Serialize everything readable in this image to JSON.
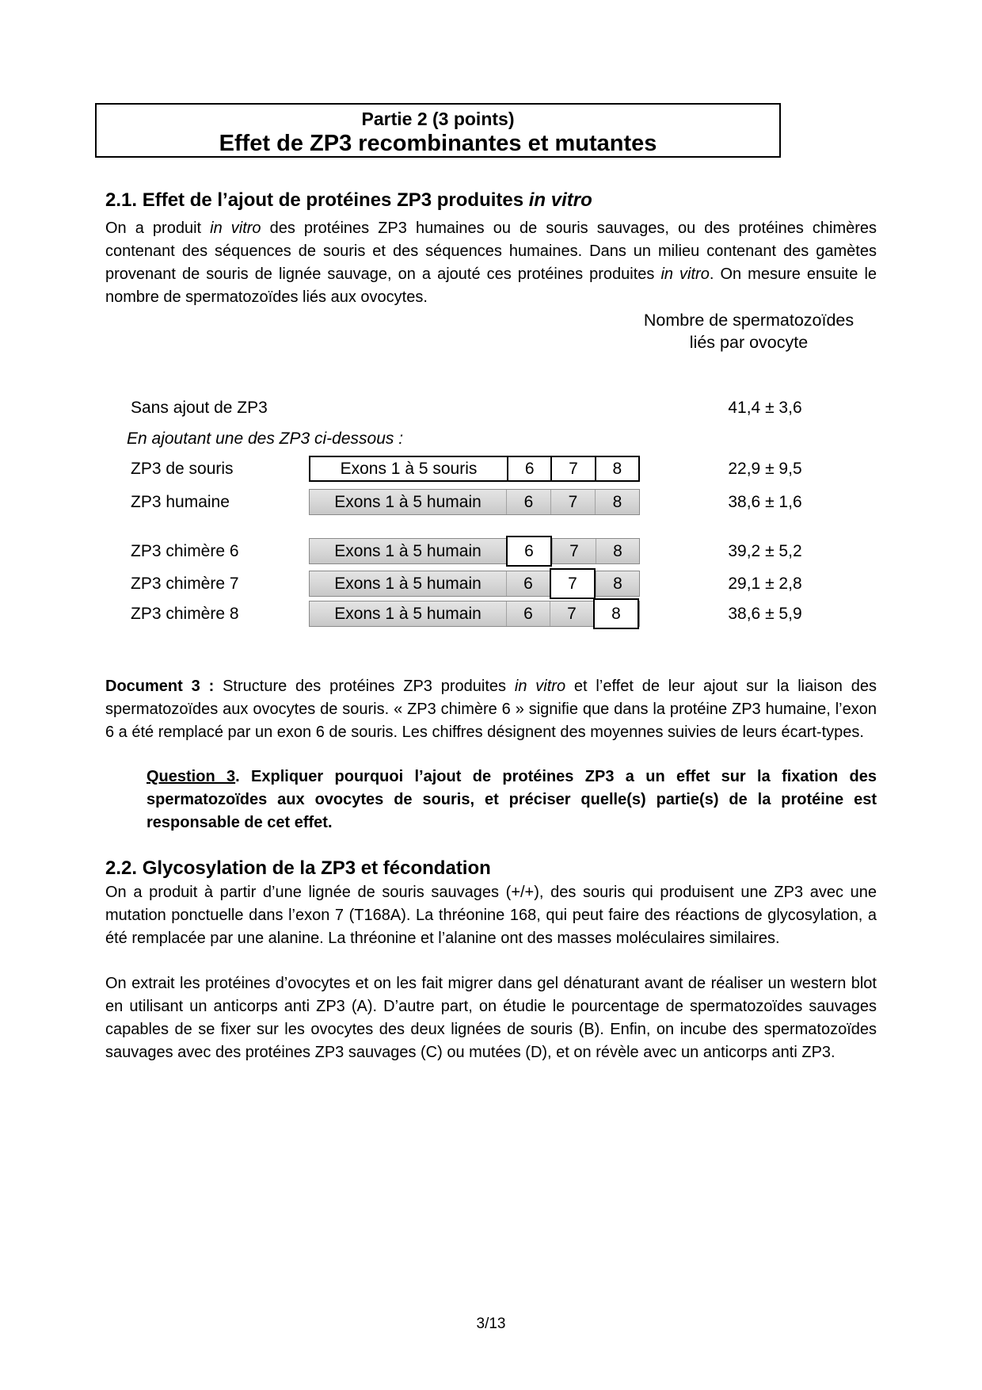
{
  "page": {
    "footer": "3/13"
  },
  "title_box": {
    "line1": "Partie 2 (3 points)",
    "line2": "Effet de ZP3 recombinantes et mutantes"
  },
  "section_2_1": {
    "heading": [
      {
        "t": "2.1. Effet de l’ajout de protéines ZP3 produites "
      },
      {
        "t": "in vitro",
        "s": "i"
      }
    ],
    "paragraph": [
      {
        "t": "On a produit "
      },
      {
        "t": "in vitro",
        "s": "i"
      },
      {
        "t": " des protéines ZP3 humaines ou de souris sauvages, ou des protéines chimères contenant des séquences de souris et des séquences humaines. Dans un milieu contenant des gamètes provenant de souris de lignée sauvage, on a ajouté ces protéines produites "
      },
      {
        "t": "in vitro",
        "s": "i"
      },
      {
        "t": ". On mesure ensuite le nombre de spermatozoïdes liés aux ovocytes."
      }
    ]
  },
  "figure": {
    "col_header": [
      "Nombre de spermatozoïdes",
      "liés par ovocyte"
    ],
    "baseline": {
      "label": "Sans ajout de ZP3",
      "value": "41,4 ± 3,6"
    },
    "intro": "En ajoutant une des ZP3 ci-dessous :",
    "rows": [
      {
        "label": "ZP3 de souris",
        "exon_label": "Exons 1 à 5  souris",
        "cells": [
          "6",
          "7",
          "8"
        ],
        "bar_style": "white",
        "highlight": null,
        "value": "22,9 ± 9,5"
      },
      {
        "label": "ZP3 humaine",
        "exon_label": "Exons 1 à 5 humain",
        "cells": [
          "6",
          "7",
          "8"
        ],
        "bar_style": "gray",
        "highlight": null,
        "value": "38,6 ± 1,6"
      },
      {
        "label": "ZP3 chimère 6",
        "exon_label": "Exons 1 à 5 humain",
        "cells": [
          "6",
          "7",
          "8"
        ],
        "bar_style": "gray",
        "highlight": "6",
        "value": "39,2 ± 5,2"
      },
      {
        "label": "ZP3 chimère 7",
        "exon_label": "Exons 1 à 5 humain",
        "cells": [
          "6",
          "7",
          "8"
        ],
        "bar_style": "gray",
        "highlight": "7",
        "value": "29,1 ± 2,8"
      },
      {
        "label": "ZP3 chimère 8",
        "exon_label": "Exons 1 à 5 humain",
        "cells": [
          "6",
          "7",
          "8"
        ],
        "bar_style": "gray",
        "highlight": "8",
        "value": "38,6 ± 5,9"
      }
    ]
  },
  "document3": {
    "caption": [
      {
        "t": "Document 3 : ",
        "s": "b"
      },
      {
        "t": "Structure des protéines ZP3 produites "
      },
      {
        "t": "in vitro",
        "s": "i"
      },
      {
        "t": " et l’effet de leur ajout sur la liaison des spermatozoïdes aux ovocytes de souris. « ZP3 chimère 6 » signifie que dans la protéine ZP3 humaine, l’exon 6 a été remplacé par un exon 6 de souris. Les chiffres désignent des moyennes suivies de leurs écart-types."
      }
    ]
  },
  "question3": {
    "text": [
      {
        "t": "Question 3",
        "s": "bu"
      },
      {
        "t": ". Expliquer pourquoi l’ajout de protéines ZP3 a un effet sur la fixation des spermatozoïdes aux ovocytes de souris, et préciser quelle(s) partie(s) de la protéine est responsable de cet effet.",
        "s": "b"
      }
    ]
  },
  "section_2_2": {
    "heading": "2.2. Glycosylation de la ZP3 et fécondation",
    "para1": "On a produit à partir d’une lignée de souris sauvages (+/+), des souris qui produisent une ZP3 avec une mutation ponctuelle dans l’exon 7 (T168A). La thréonine 168, qui peut faire des réactions de glycosylation, a été remplacée par une alanine. La thréonine et l’alanine ont des masses moléculaires similaires.",
    "para2": "On extrait les protéines d’ovocytes et on les fait migrer dans gel dénaturant avant de réaliser un western blot en utilisant un anticorps anti ZP3 (A). D’autre part, on étudie le pourcentage de spermatozoïdes sauvages capables de se fixer sur les ovocytes des deux lignées de souris (B). Enfin, on incube des spermatozoïdes sauvages avec des protéines ZP3 sauvages (C) ou mutées (D), et on révèle avec un anticorps anti ZP3."
  },
  "colors": {
    "bar_gray": "#d6d6d6",
    "bar_gray_border": "#8a8a8a",
    "highlight_border": "#000000",
    "text": "#000000"
  }
}
